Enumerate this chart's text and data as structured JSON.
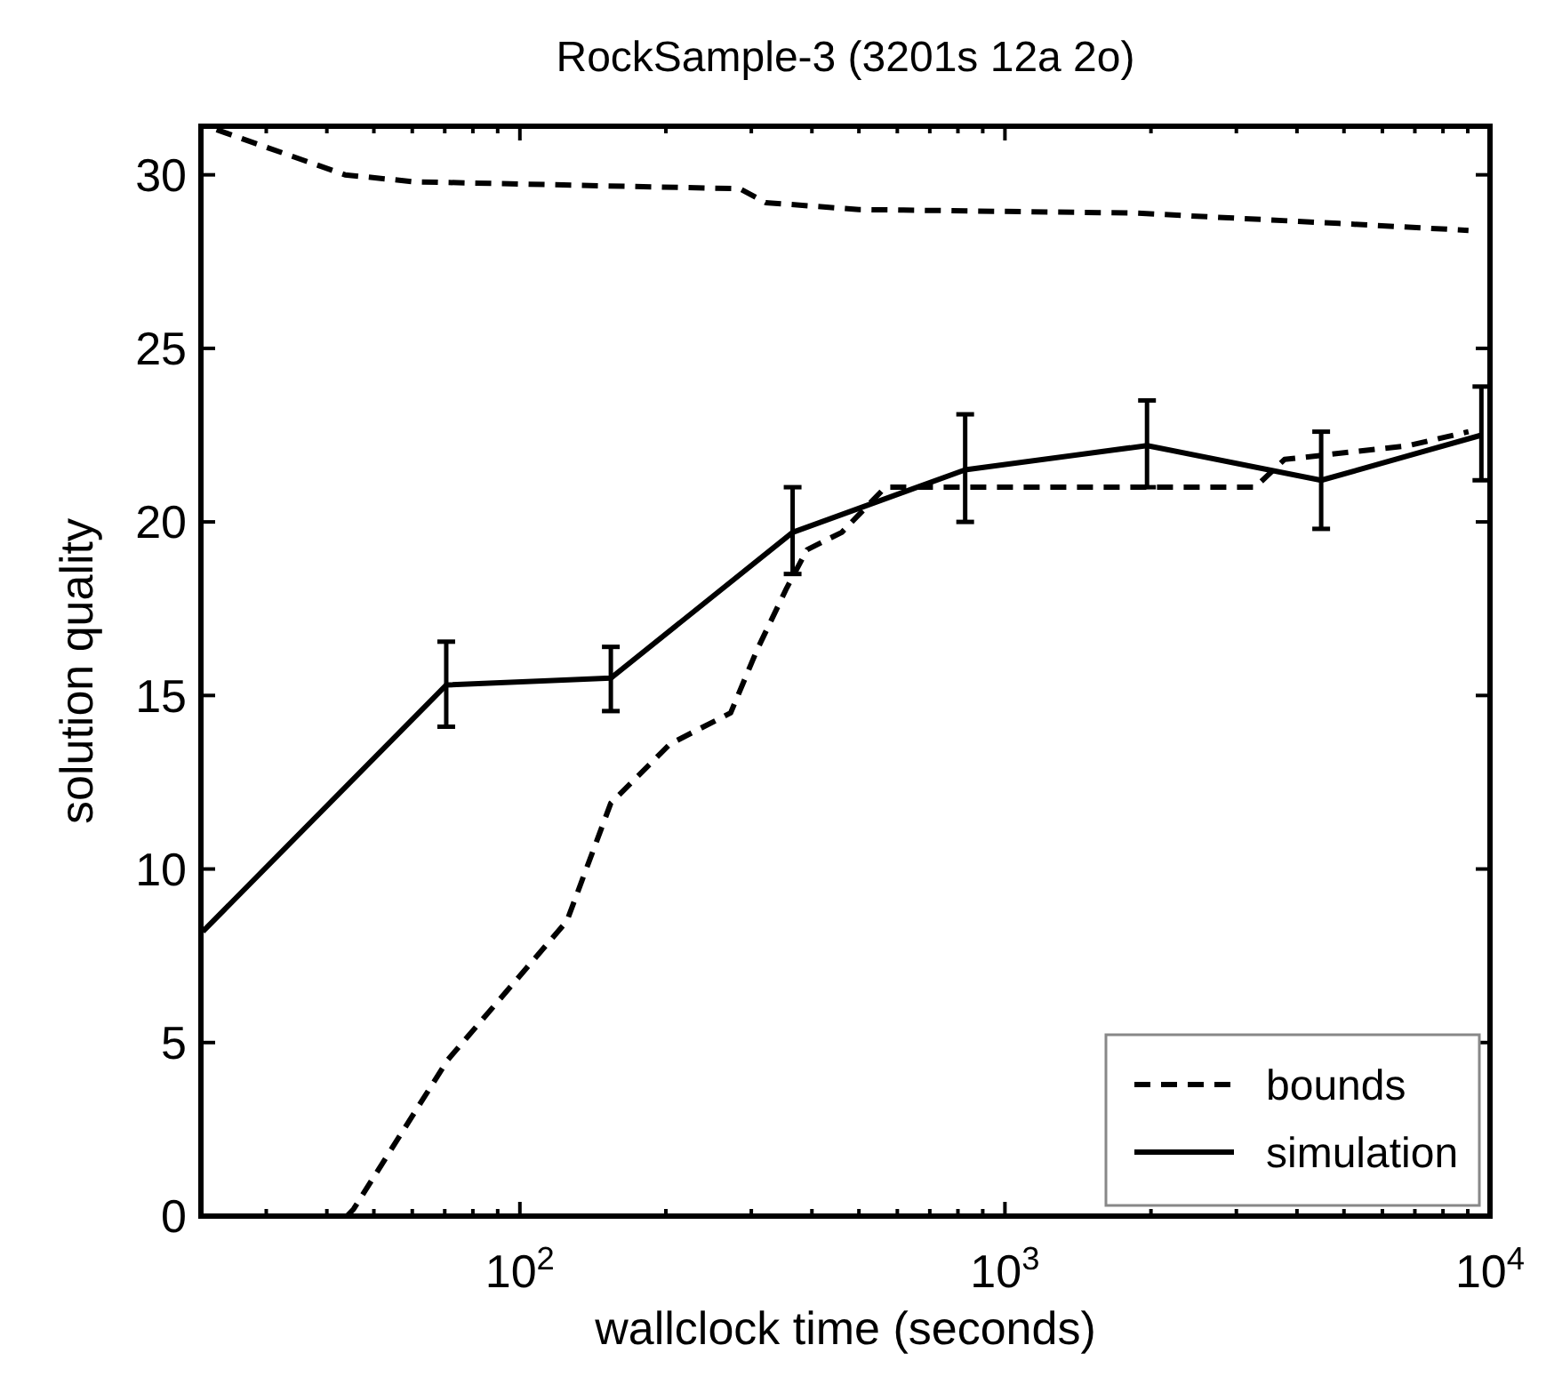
{
  "chart_data": {
    "type": "line",
    "title": "RockSample-3 (3201s 12a 2o)",
    "xlabel": "wallclock time (seconds)",
    "ylabel": "solution quality",
    "log": "x",
    "xlim": [
      22,
      10000
    ],
    "ylim": [
      0,
      31.4
    ],
    "xticks": [
      {
        "value": 30,
        "label": null
      },
      {
        "value": 40,
        "label": null
      },
      {
        "value": 50,
        "label": null
      },
      {
        "value": 60,
        "label": null
      },
      {
        "value": 70,
        "label": null
      },
      {
        "value": 80,
        "label": null
      },
      {
        "value": 90,
        "label": null
      },
      {
        "value": 100,
        "label": "10$^{2}$"
      },
      {
        "value": 200,
        "label": null
      },
      {
        "value": 300,
        "label": null
      },
      {
        "value": 400,
        "label": null
      },
      {
        "value": 500,
        "label": null
      },
      {
        "value": 600,
        "label": null
      },
      {
        "value": 700,
        "label": null
      },
      {
        "value": 800,
        "label": null
      },
      {
        "value": 900,
        "label": null
      },
      {
        "value": 1000,
        "label": "10$^{3}$"
      },
      {
        "value": 2000,
        "label": null
      },
      {
        "value": 3000,
        "label": null
      },
      {
        "value": 4000,
        "label": null
      },
      {
        "value": 5000,
        "label": null
      },
      {
        "value": 6000,
        "label": null
      },
      {
        "value": 7000,
        "label": null
      },
      {
        "value": 8000,
        "label": null
      },
      {
        "value": 9000,
        "label": null
      },
      {
        "value": 10000,
        "label": "10$^{4}$"
      }
    ],
    "yticks": [
      0,
      5,
      10,
      15,
      20,
      25,
      30
    ],
    "grid": false,
    "legend": "bottom right",
    "marker": "none",
    "series": [
      {
        "name": "bounds",
        "color": "#000000",
        "line_style": "dashed",
        "x": [
          23.7,
          43.6,
          60.5,
          284,
          321,
          500,
          1846,
          4880,
          9030
        ],
        "values": [
          31.3,
          30.0,
          29.8,
          29.6,
          29.2,
          29.0,
          28.9,
          28.6,
          28.4
        ]
      },
      {
        "color": "#000000",
        "line_style": "dashed",
        "x": [
          44,
          45.4,
          71,
          125,
          154,
          204,
          272,
          308,
          355,
          391,
          461,
          567,
          3280,
          3770,
          6800,
          9030
        ],
        "values": [
          0,
          0.2,
          4.5,
          8.5,
          11.9,
          13.6,
          14.5,
          16.3,
          18.1,
          19.2,
          19.7,
          21.0,
          21.0,
          21.8,
          22.2,
          22.6
        ]
      },
      {
        "name": "simulation",
        "color": "#000000",
        "line_style": "solid",
        "x": [
          22.2,
          70.5,
          154,
          365,
          828,
          1963,
          4487,
          9600
        ],
        "values": [
          8.2,
          15.3,
          15.5,
          19.7,
          21.5,
          22.2,
          21.2,
          22.5
        ],
        "errors": [
          null,
          [
            14.1,
            16.55
          ],
          [
            14.55,
            16.4
          ],
          [
            18.5,
            21.0
          ],
          [
            20.0,
            23.1
          ],
          [
            21.0,
            23.5
          ],
          [
            19.8,
            22.6
          ],
          [
            21.2,
            23.9
          ]
        ]
      }
    ]
  }
}
